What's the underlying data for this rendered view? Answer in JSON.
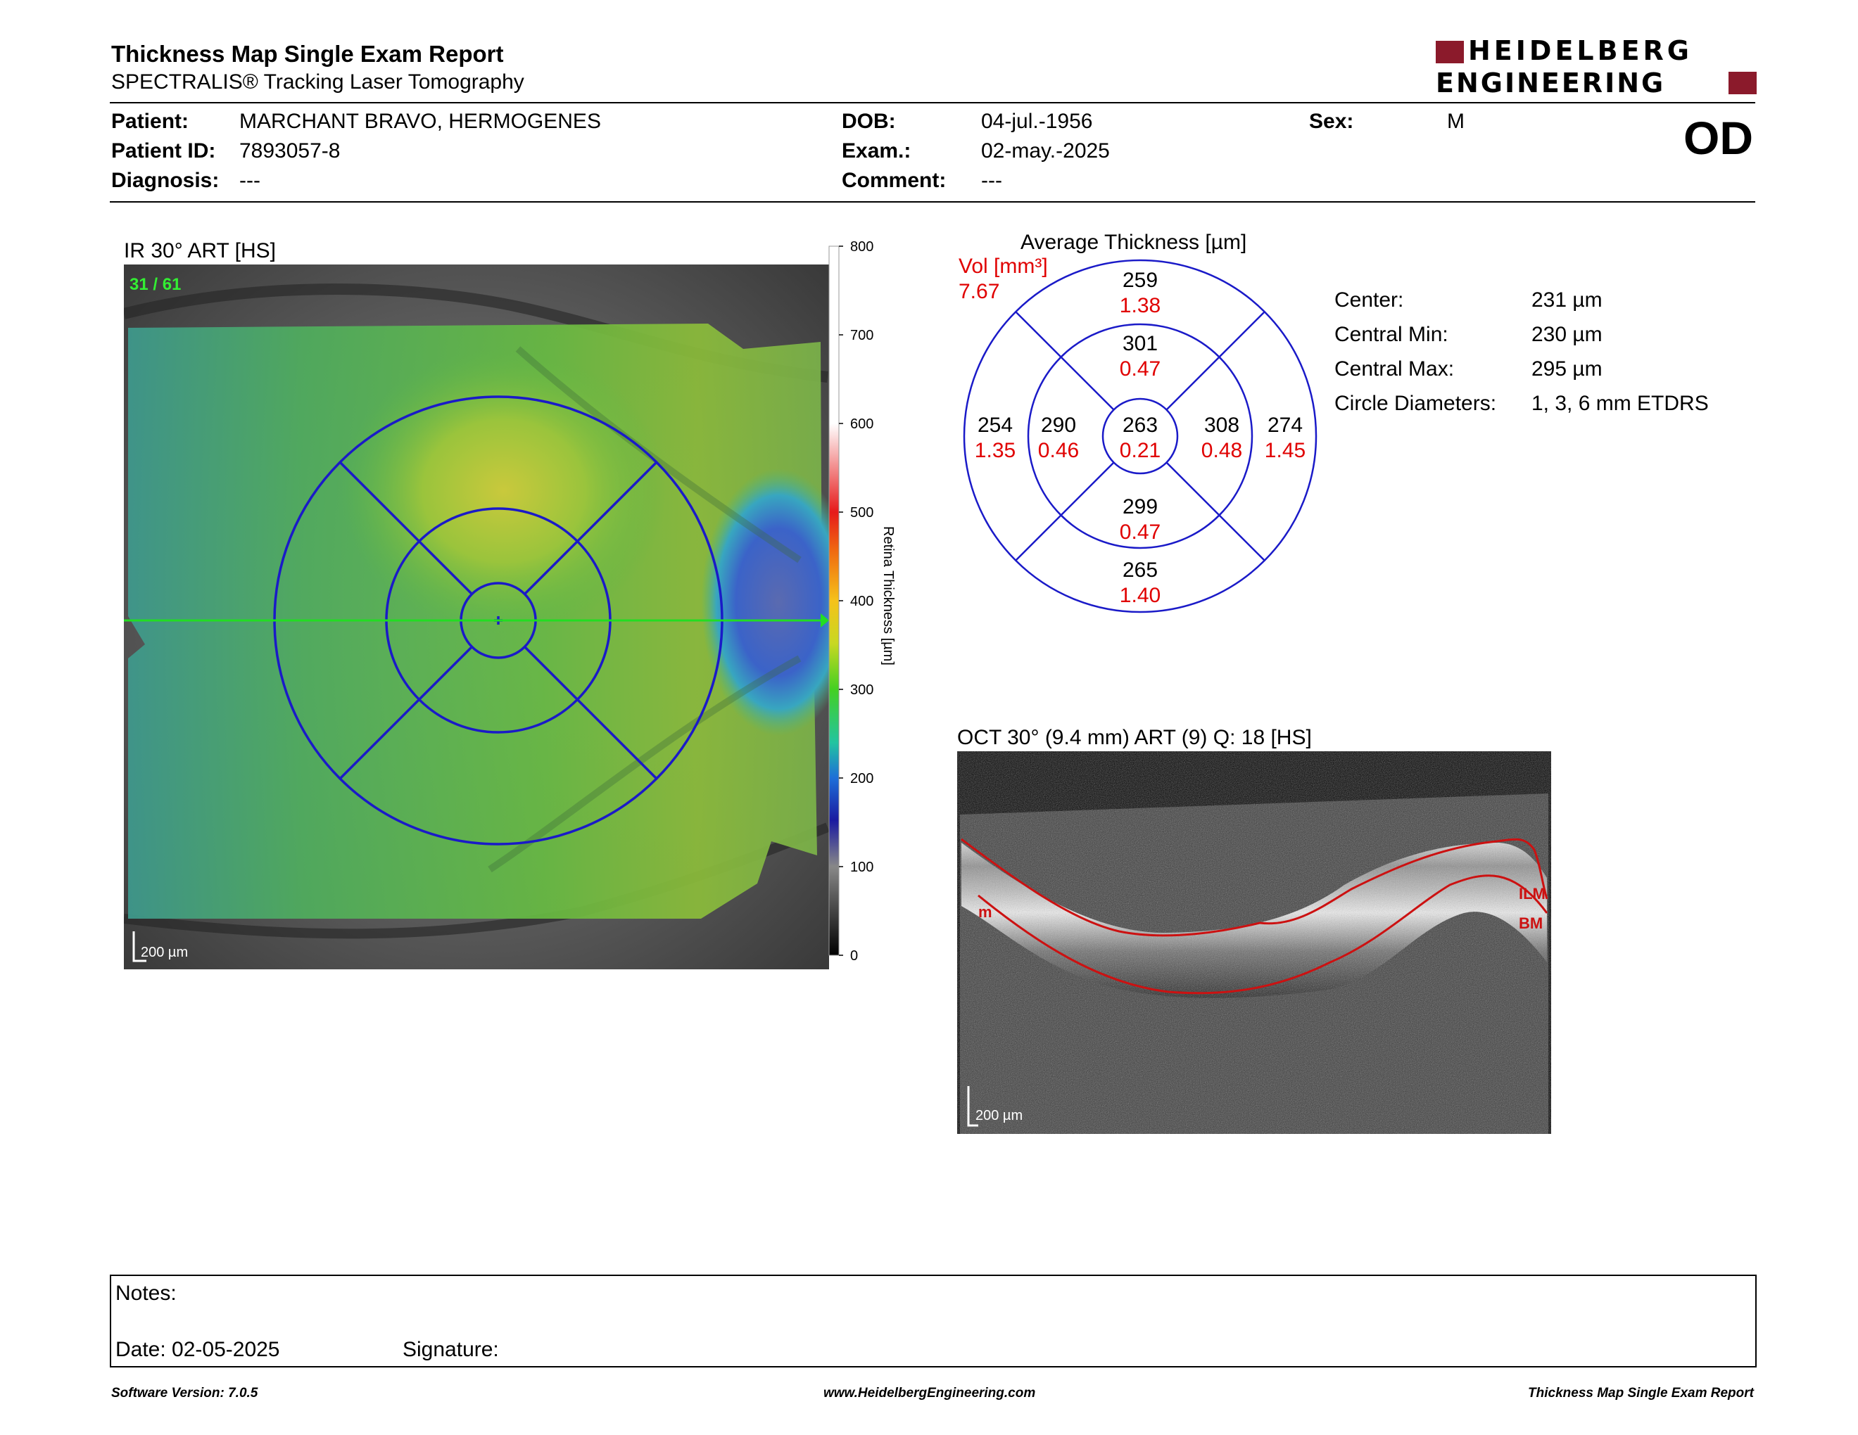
{
  "header": {
    "title": "Thickness Map Single Exam Report",
    "subtitle": "SPECTRALIS® Tracking Laser Tomography",
    "logo_line1": "HEIDELBERG",
    "logo_line2": "ENGINEERING"
  },
  "patient": {
    "patient_label": "Patient:",
    "patient_name": "MARCHANT BRAVO, HERMOGENES",
    "id_label": "Patient ID:",
    "id_value": "7893057-8",
    "diagnosis_label": "Diagnosis:",
    "diagnosis_value": "---",
    "dob_label": "DOB:",
    "dob_value": "04-jul.-1956",
    "exam_label": "Exam.:",
    "exam_value": "02-may.-2025",
    "comment_label": "Comment:",
    "comment_value": "---",
    "sex_label": "Sex:",
    "sex_value": "M",
    "eye": "OD"
  },
  "fundus": {
    "title": "IR 30° ART [HS]",
    "frame": "31 / 61",
    "scale_bar": "200 µm",
    "colorbar_ticks": [
      "800",
      "700",
      "600",
      "500",
      "400",
      "300",
      "200",
      "100",
      "0"
    ],
    "colorbar_label": "Retina  Thickness [µm]"
  },
  "etdrs": {
    "title": "Average Thickness [µm]",
    "vol_label": "Vol [mm³]",
    "vol_total": "7.67",
    "sectors": {
      "outer_superior": {
        "thickness": "259",
        "volume": "1.38"
      },
      "inner_superior": {
        "thickness": "301",
        "volume": "0.47"
      },
      "outer_temporal": {
        "thickness": "254",
        "volume": "1.35"
      },
      "inner_temporal": {
        "thickness": "290",
        "volume": "0.46"
      },
      "center": {
        "thickness": "263",
        "volume": "0.21"
      },
      "inner_nasal": {
        "thickness": "308",
        "volume": "0.48"
      },
      "outer_nasal": {
        "thickness": "274",
        "volume": "1.45"
      },
      "inner_inferior": {
        "thickness": "299",
        "volume": "0.47"
      },
      "outer_inferior": {
        "thickness": "265",
        "volume": "1.40"
      }
    }
  },
  "stats": [
    {
      "label": "Center:",
      "value": "231 µm"
    },
    {
      "label": "Central Min:",
      "value": "230 µm"
    },
    {
      "label": "Central Max:",
      "value": "295 µm"
    },
    {
      "label": "Circle Diameters:",
      "value": "1, 3, 6 mm ETDRS"
    }
  ],
  "oct": {
    "title": "OCT 30° (9.4 mm) ART (9) Q: 18 [HS]",
    "scale_bar": "200 µm",
    "ilm_label": "ILM",
    "bm_label": "BM",
    "left_label": "m"
  },
  "notes": {
    "notes_label": "Notes:",
    "date_label": "Date: 02-05-2025",
    "signature_label": "Signature:"
  },
  "footer": {
    "left": "Software Version: 7.0.5",
    "center": "www.HeidelbergEngineering.com",
    "right": "Thickness Map Single Exam Report"
  },
  "colors": {
    "ring": "#1a1ac8",
    "volume_text": "#e00000",
    "logo_red": "#8b1a2b",
    "scan_line": "#22dd22",
    "segmentation": "#cc1111"
  }
}
